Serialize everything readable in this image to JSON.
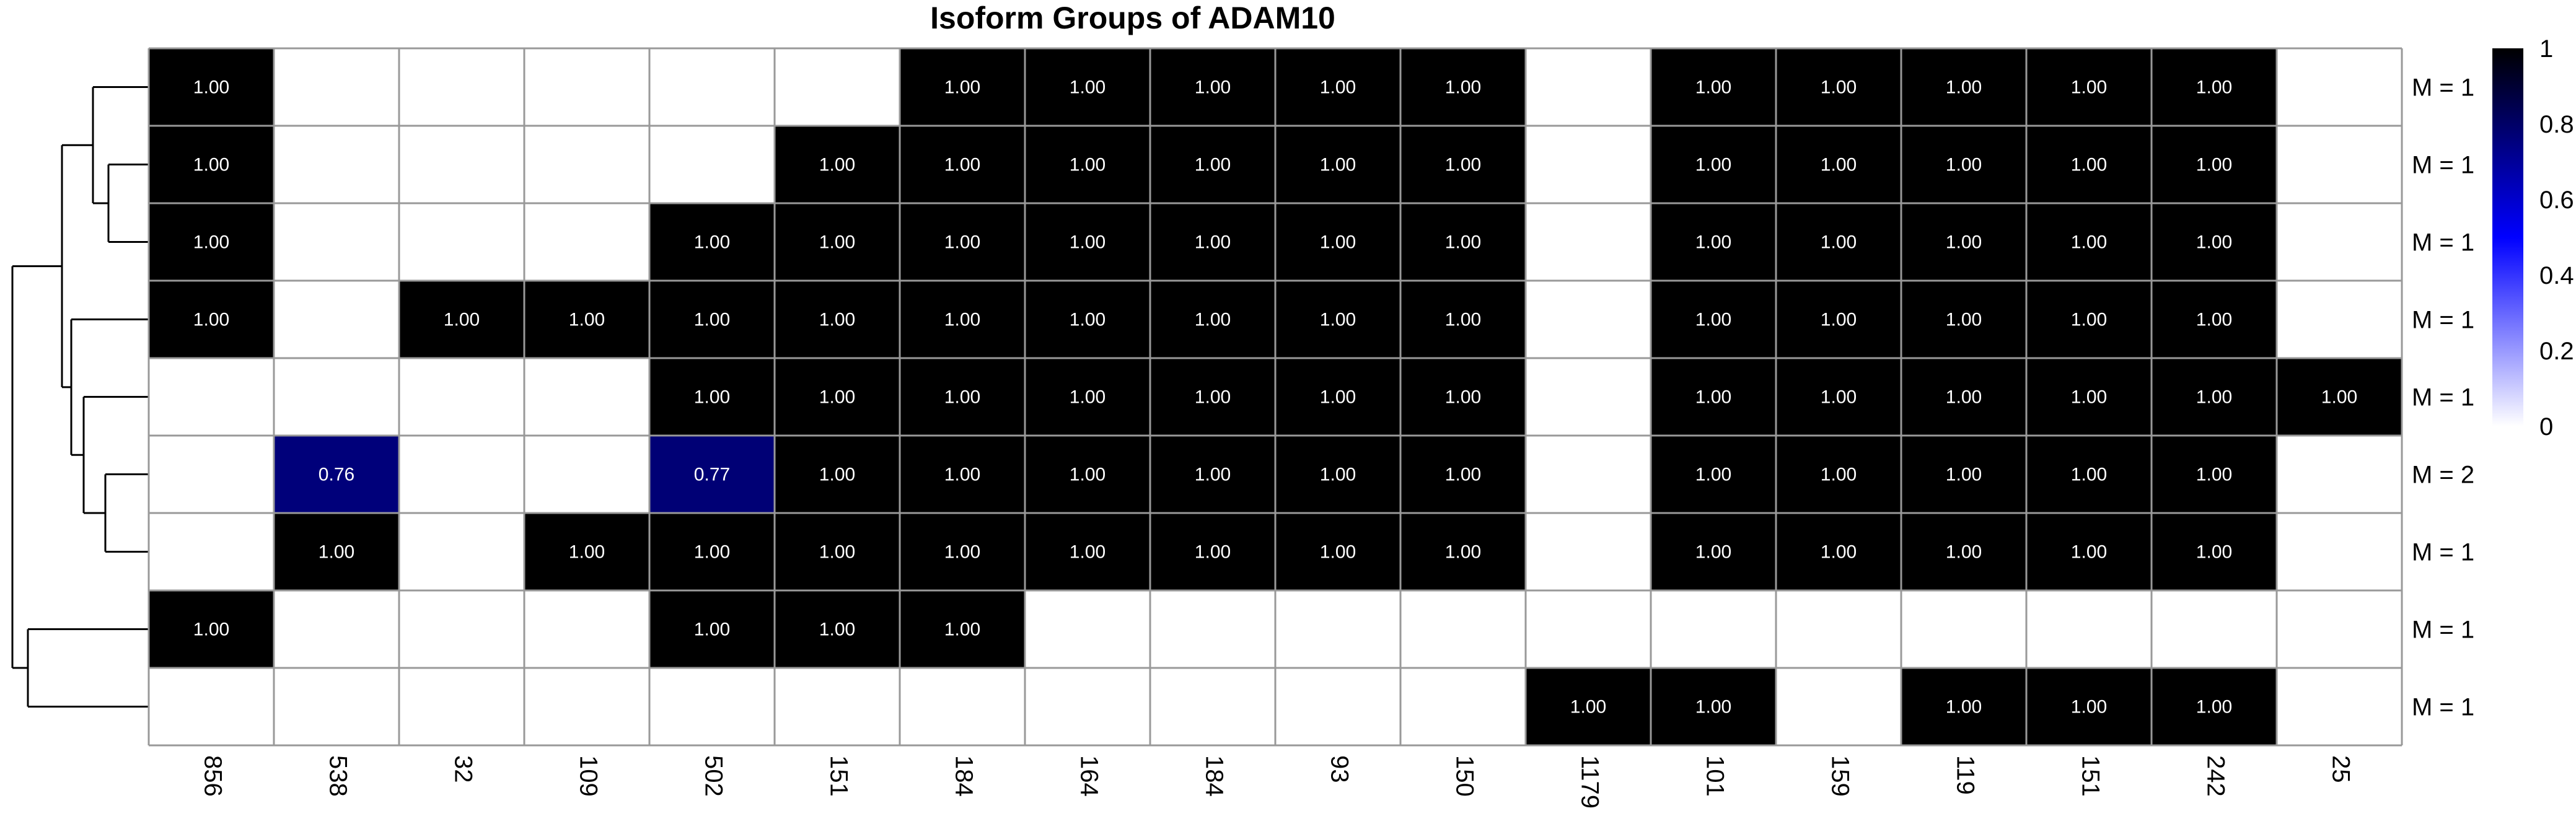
{
  "chart_data": {
    "type": "heatmap",
    "title": "Isoform Groups of ADAM10",
    "xlabel": "",
    "ylabel": "",
    "columns": [
      "856",
      "538",
      "32",
      "109",
      "502",
      "151",
      "184",
      "164",
      "184",
      "93",
      "150",
      "1179",
      "101",
      "159",
      "119",
      "151",
      "242",
      "25"
    ],
    "rows": [
      "M = 1",
      "M = 1",
      "M = 1",
      "M = 1",
      "M = 1",
      "M = 2",
      "M = 1",
      "M = 1",
      "M = 1"
    ],
    "values": [
      [
        1,
        0,
        0,
        0,
        0,
        0,
        1,
        1,
        1,
        1,
        1,
        0,
        1,
        1,
        1,
        1,
        1,
        0
      ],
      [
        1,
        0,
        0,
        0,
        0,
        1,
        1,
        1,
        1,
        1,
        1,
        0,
        1,
        1,
        1,
        1,
        1,
        0
      ],
      [
        1,
        0,
        0,
        0,
        1,
        1,
        1,
        1,
        1,
        1,
        1,
        0,
        1,
        1,
        1,
        1,
        1,
        0
      ],
      [
        1,
        0,
        1,
        1,
        1,
        1,
        1,
        1,
        1,
        1,
        1,
        0,
        1,
        1,
        1,
        1,
        1,
        0
      ],
      [
        0,
        0,
        0,
        0,
        1,
        1,
        1,
        1,
        1,
        1,
        1,
        0,
        1,
        1,
        1,
        1,
        1,
        1
      ],
      [
        0,
        0.76,
        0,
        0,
        0.77,
        1,
        1,
        1,
        1,
        1,
        1,
        0,
        1,
        1,
        1,
        1,
        1,
        0
      ],
      [
        0,
        1,
        0,
        1,
        1,
        1,
        1,
        1,
        1,
        1,
        1,
        0,
        1,
        1,
        1,
        1,
        1,
        0
      ],
      [
        1,
        0,
        0,
        0,
        1,
        1,
        1,
        0,
        0,
        0,
        0,
        0,
        0,
        0,
        0,
        0,
        0,
        0
      ],
      [
        0,
        0,
        0,
        0,
        0,
        0,
        0,
        0,
        0,
        0,
        0,
        1,
        1,
        0,
        1,
        1,
        1,
        0
      ]
    ],
    "value_format": "2 decimals; empty cells (0) carry no label",
    "colorbar": {
      "range": [
        0,
        1
      ],
      "ticks": [
        "0",
        "0.2",
        "0.4",
        "0.6",
        "0.8",
        "1"
      ],
      "stops": [
        "#ffffff",
        "#0000ff",
        "#000000"
      ]
    },
    "colors": {
      "grid": "#999999",
      "cell_label": "#ffffff",
      "axis_text": "#000000"
    },
    "dendrogram": "left side, row clustering",
    "grid": true,
    "legend": "right"
  }
}
